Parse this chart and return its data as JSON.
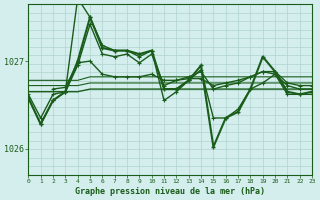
{
  "title": "Graphe pression niveau de la mer (hPa)",
  "bg_color": "#d4eeed",
  "grid_color": "#b0d4d0",
  "line_color": "#1a5c1a",
  "x_min": 0,
  "x_max": 23,
  "y_min": 1025.7,
  "y_max": 1027.65,
  "y_ticks": [
    1026,
    1027
  ],
  "lines": [
    {
      "x": [
        0,
        1,
        2,
        3,
        4,
        5,
        6,
        7,
        8,
        9,
        10,
        11,
        12,
        13,
        14,
        15,
        16,
        17,
        18,
        19,
        20,
        21,
        22,
        23
      ],
      "y": [
        1026.65,
        1026.65,
        1026.65,
        1026.65,
        1026.65,
        1026.68,
        1026.68,
        1026.68,
        1026.68,
        1026.68,
        1026.68,
        1026.68,
        1026.68,
        1026.68,
        1026.68,
        1026.68,
        1026.68,
        1026.68,
        1026.68,
        1026.68,
        1026.68,
        1026.68,
        1026.68,
        1026.68
      ],
      "marker": false,
      "linewidth": 1.0
    },
    {
      "x": [
        0,
        1,
        2,
        3,
        4,
        5,
        6,
        7,
        8,
        9,
        10,
        11,
        12,
        13,
        14,
        15,
        16,
        17,
        18,
        19,
        20,
        21,
        22,
        23
      ],
      "y": [
        1026.72,
        1026.72,
        1026.72,
        1026.72,
        1026.72,
        1026.75,
        1026.75,
        1026.75,
        1026.75,
        1026.75,
        1026.75,
        1026.75,
        1026.75,
        1026.75,
        1026.75,
        1026.75,
        1026.75,
        1026.75,
        1026.75,
        1026.75,
        1026.75,
        1026.75,
        1026.75,
        1026.75
      ],
      "marker": false,
      "linewidth": 0.8
    },
    {
      "x": [
        0,
        1,
        2,
        3,
        4,
        5,
        6,
        7,
        8,
        9,
        10,
        11,
        12,
        13,
        14,
        15,
        16,
        17,
        18,
        19,
        20,
        21,
        22,
        23
      ],
      "y": [
        1026.78,
        1026.78,
        1026.78,
        1026.78,
        1026.78,
        1026.82,
        1026.82,
        1026.82,
        1026.82,
        1026.82,
        1026.82,
        1026.82,
        1026.82,
        1026.82,
        1026.82,
        1026.82,
        1026.82,
        1026.82,
        1026.82,
        1026.82,
        1026.82,
        1026.82,
        1026.82,
        1026.82
      ],
      "marker": false,
      "linewidth": 0.8
    },
    {
      "x": [
        2,
        3,
        4,
        5,
        6,
        7,
        8,
        9,
        10,
        11,
        12,
        13,
        14,
        15,
        16,
        17,
        18,
        19,
        20,
        21,
        22,
        23
      ],
      "y": [
        1026.68,
        1026.7,
        1026.98,
        1027.0,
        1026.85,
        1026.82,
        1026.82,
        1026.82,
        1026.85,
        1026.78,
        1026.78,
        1026.8,
        1026.8,
        1026.72,
        1026.75,
        1026.78,
        1026.82,
        1026.88,
        1026.88,
        1026.75,
        1026.72,
        1026.72
      ],
      "marker": true,
      "linewidth": 1.0
    },
    {
      "x": [
        0,
        1,
        2,
        3,
        4,
        5,
        6,
        7,
        8,
        9,
        10,
        11,
        12,
        13,
        14,
        15,
        16,
        17,
        18,
        19,
        20,
        21,
        22,
        23
      ],
      "y": [
        1026.62,
        1026.35,
        1026.62,
        1026.65,
        1026.95,
        1027.42,
        1027.08,
        1027.05,
        1027.08,
        1026.98,
        1027.08,
        1026.72,
        1026.78,
        1026.82,
        1026.88,
        1026.68,
        1026.72,
        1026.75,
        1026.82,
        1026.88,
        1026.85,
        1026.72,
        1026.68,
        1026.68
      ],
      "marker": true,
      "linewidth": 1.0
    }
  ],
  "main_line": {
    "x": [
      0,
      1,
      2,
      3,
      4,
      5,
      6,
      7,
      8,
      9,
      10,
      11,
      12,
      13,
      14,
      15,
      16,
      17,
      18,
      19,
      20,
      21,
      22,
      23
    ],
    "y": [
      1026.58,
      1026.28,
      1026.55,
      1026.65,
      1027.0,
      1027.5,
      1027.15,
      1027.12,
      1027.12,
      1027.08,
      1027.12,
      1026.68,
      1026.68,
      1026.78,
      1026.95,
      1026.02,
      1026.35,
      1026.42,
      1026.68,
      1027.05,
      1026.88,
      1026.65,
      1026.62,
      1026.65
    ],
    "marker": true,
    "linewidth": 1.5
  },
  "spike_line": {
    "x": [
      0,
      1,
      2,
      3,
      4,
      5,
      6,
      7,
      8,
      9,
      10,
      11,
      12,
      13,
      14,
      15,
      16,
      17,
      18,
      19,
      20,
      21,
      22,
      23
    ],
    "y": [
      1026.58,
      1026.28,
      1026.55,
      1026.65,
      1027.72,
      1027.5,
      1027.18,
      1027.12,
      1027.12,
      1027.05,
      1027.12,
      1026.55,
      1026.65,
      1026.78,
      1026.9,
      1026.35,
      1026.35,
      1026.45,
      1026.68,
      1026.75,
      1026.85,
      1026.62,
      1026.62,
      1026.62
    ],
    "marker": true,
    "linewidth": 1.0
  }
}
